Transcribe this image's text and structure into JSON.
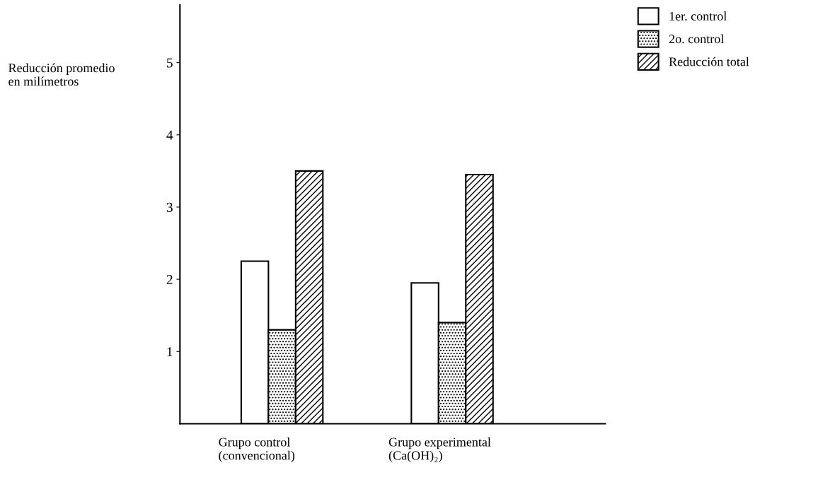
{
  "chart_data": {
    "type": "bar",
    "ylabel": "Reducción promedio\nen milímetros",
    "categories": [
      "Grupo control\n(convencional)",
      "Grupo experimental\n(Ca(OH)₂)"
    ],
    "series": [
      {
        "name": "1er. control",
        "color": "#ffffff",
        "values": [
          2.25,
          1.95
        ]
      },
      {
        "name": "2o. control",
        "color": "#000000",
        "values": [
          1.3,
          1.4
        ]
      },
      {
        "name": "Reducción total",
        "color": "#000000",
        "values": [
          3.5,
          3.45
        ]
      }
    ],
    "ylim": [
      0,
      5.8
    ],
    "yticks": [
      1,
      2,
      3,
      4,
      5
    ],
    "grid": false,
    "legend": "top right"
  }
}
